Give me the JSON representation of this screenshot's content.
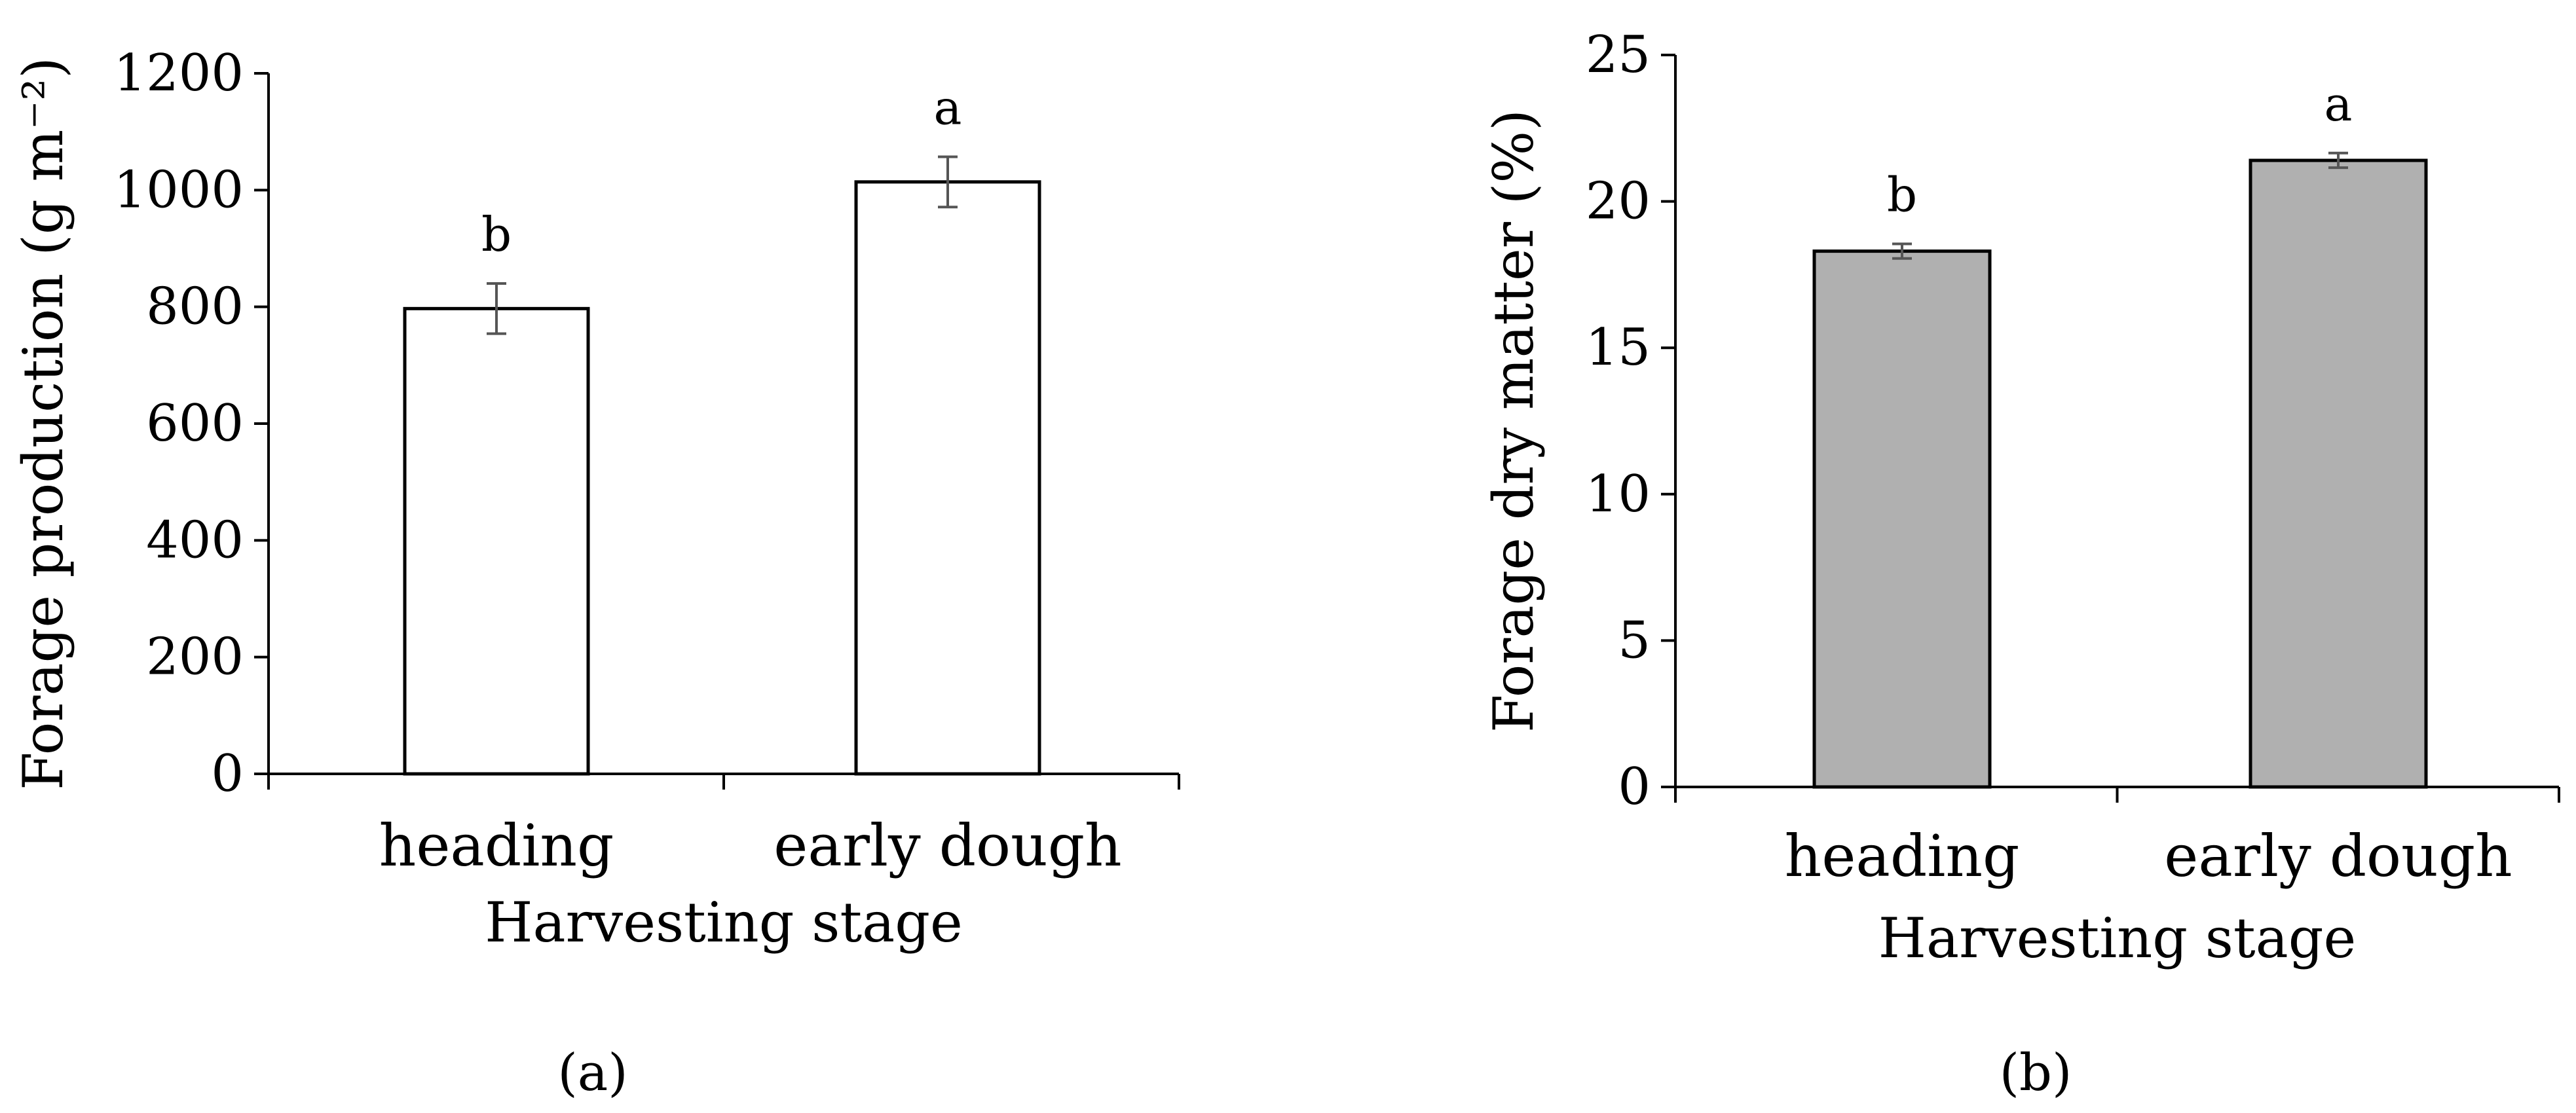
{
  "chart_data": [
    {
      "type": "bar",
      "panel_label": "(a)",
      "categories": [
        "heading",
        "early dough"
      ],
      "values": [
        797,
        1014
      ],
      "errors": [
        43,
        43
      ],
      "significance": [
        "b",
        "a"
      ],
      "bar_color": "#ffffff",
      "xlabel": "Harvesting stage",
      "ylabel": "Forage production (g m⁻²)",
      "ylim": [
        0,
        1200
      ],
      "yticks": [
        0,
        200,
        400,
        600,
        800,
        1000,
        1200
      ],
      "grid": false
    },
    {
      "type": "bar",
      "panel_label": "(b)",
      "categories": [
        "heading",
        "early dough"
      ],
      "values": [
        18.3,
        21.4
      ],
      "errors": [
        0.25,
        0.25
      ],
      "significance": [
        "b",
        "a"
      ],
      "bar_color": "#b0b0b0",
      "xlabel": "Harvesting stage",
      "ylabel": "Forage dry matter  (%)",
      "ylim": [
        0,
        25
      ],
      "yticks": [
        0,
        5,
        10,
        15,
        20,
        25
      ],
      "grid": false
    }
  ]
}
